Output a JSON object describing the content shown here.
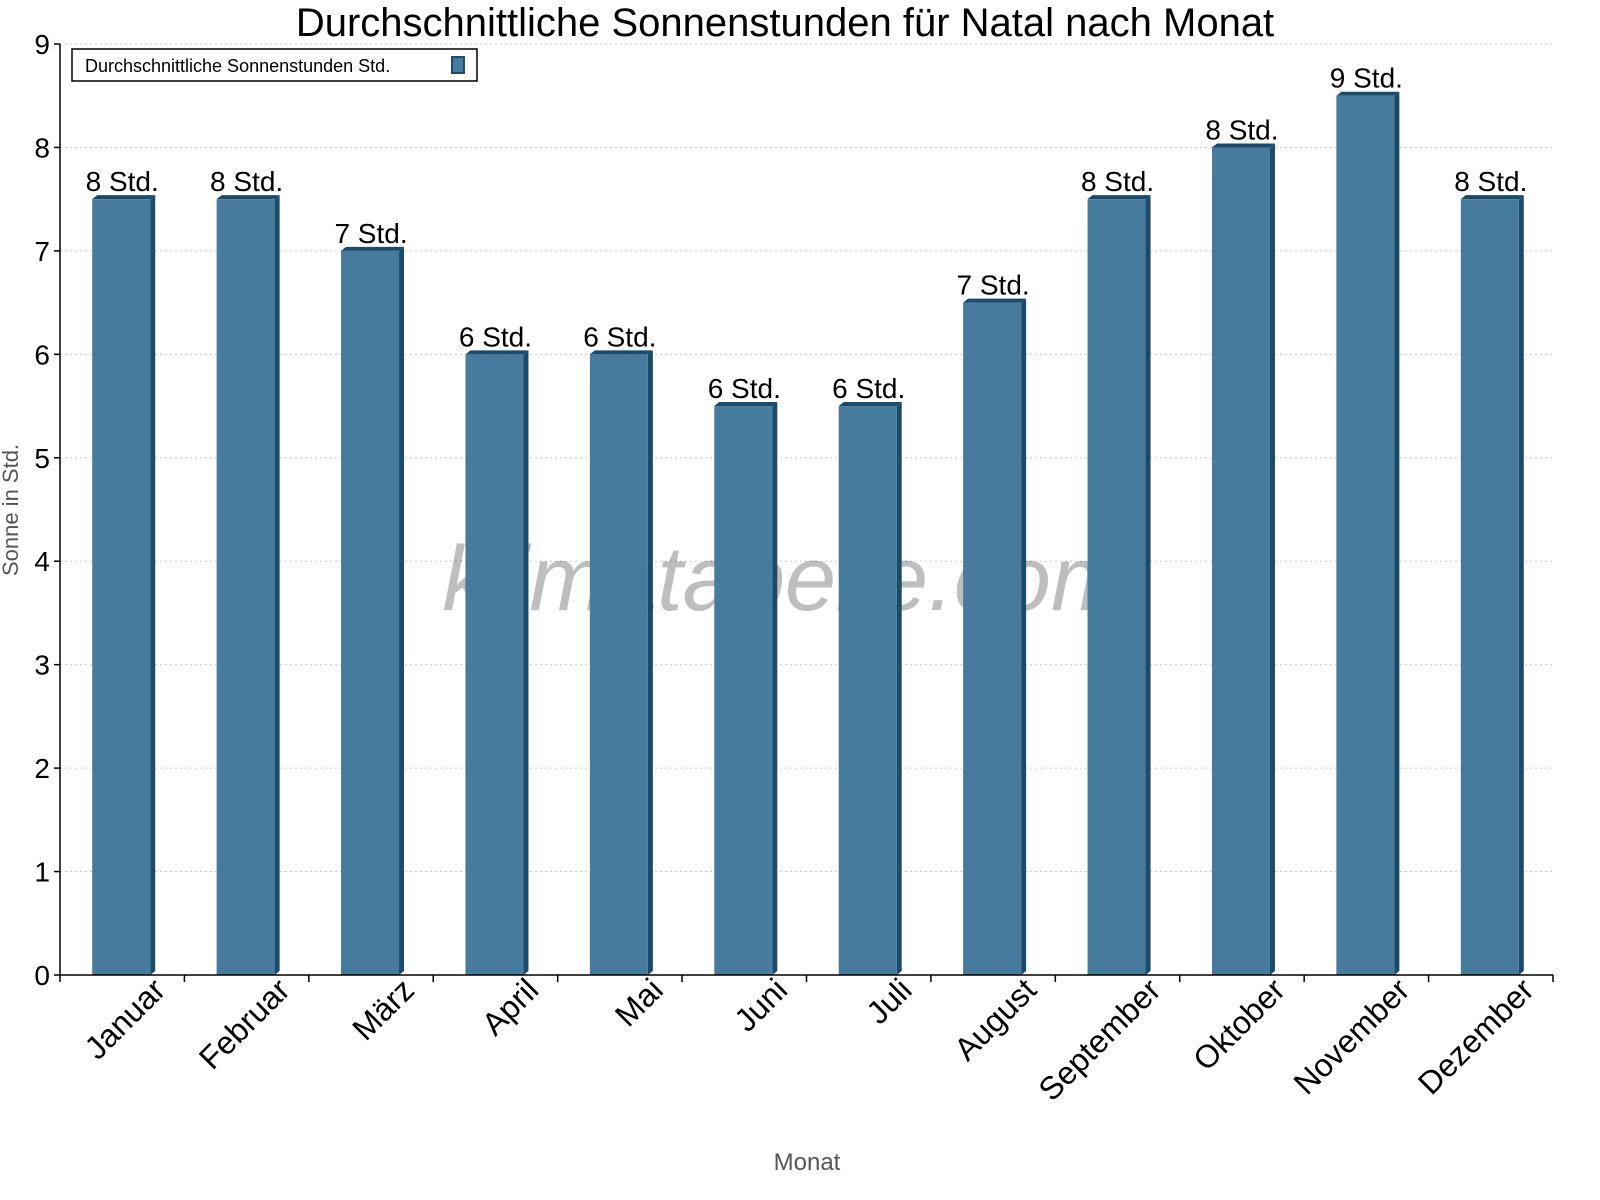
{
  "chart_data": {
    "type": "bar",
    "title": "Durchschnittliche Sonnenstunden für Natal nach Monat",
    "xlabel": "Monat",
    "ylabel": "Sonne in Std.",
    "ylim": [
      0,
      9
    ],
    "yticks": [
      "0",
      "1",
      "2",
      "3",
      "4",
      "5",
      "6",
      "7",
      "8",
      "9"
    ],
    "grid": true,
    "legend_position": "top-right",
    "categories": [
      "Januar",
      "Februar",
      "März",
      "April",
      "Mai",
      "Juni",
      "Juli",
      "August",
      "September",
      "Oktober",
      "November",
      "Dezember"
    ],
    "series": [
      {
        "name": "Durchschnittliche Sonnenstunden Std.",
        "values": [
          7.5,
          7.5,
          7.0,
          6.0,
          6.0,
          5.5,
          5.5,
          6.5,
          7.5,
          8.0,
          8.5,
          7.5
        ],
        "data_labels": [
          "8 Std.",
          "8 Std.",
          "7 Std.",
          "6 Std.",
          "6 Std.",
          "6 Std.",
          "6 Std.",
          "7 Std.",
          "8 Std.",
          "8 Std.",
          "9 Std.",
          "8 Std."
        ],
        "color": "#467b9d",
        "edge_color": "#1b4a6b"
      }
    ],
    "watermark": "klimatabelle.com"
  }
}
